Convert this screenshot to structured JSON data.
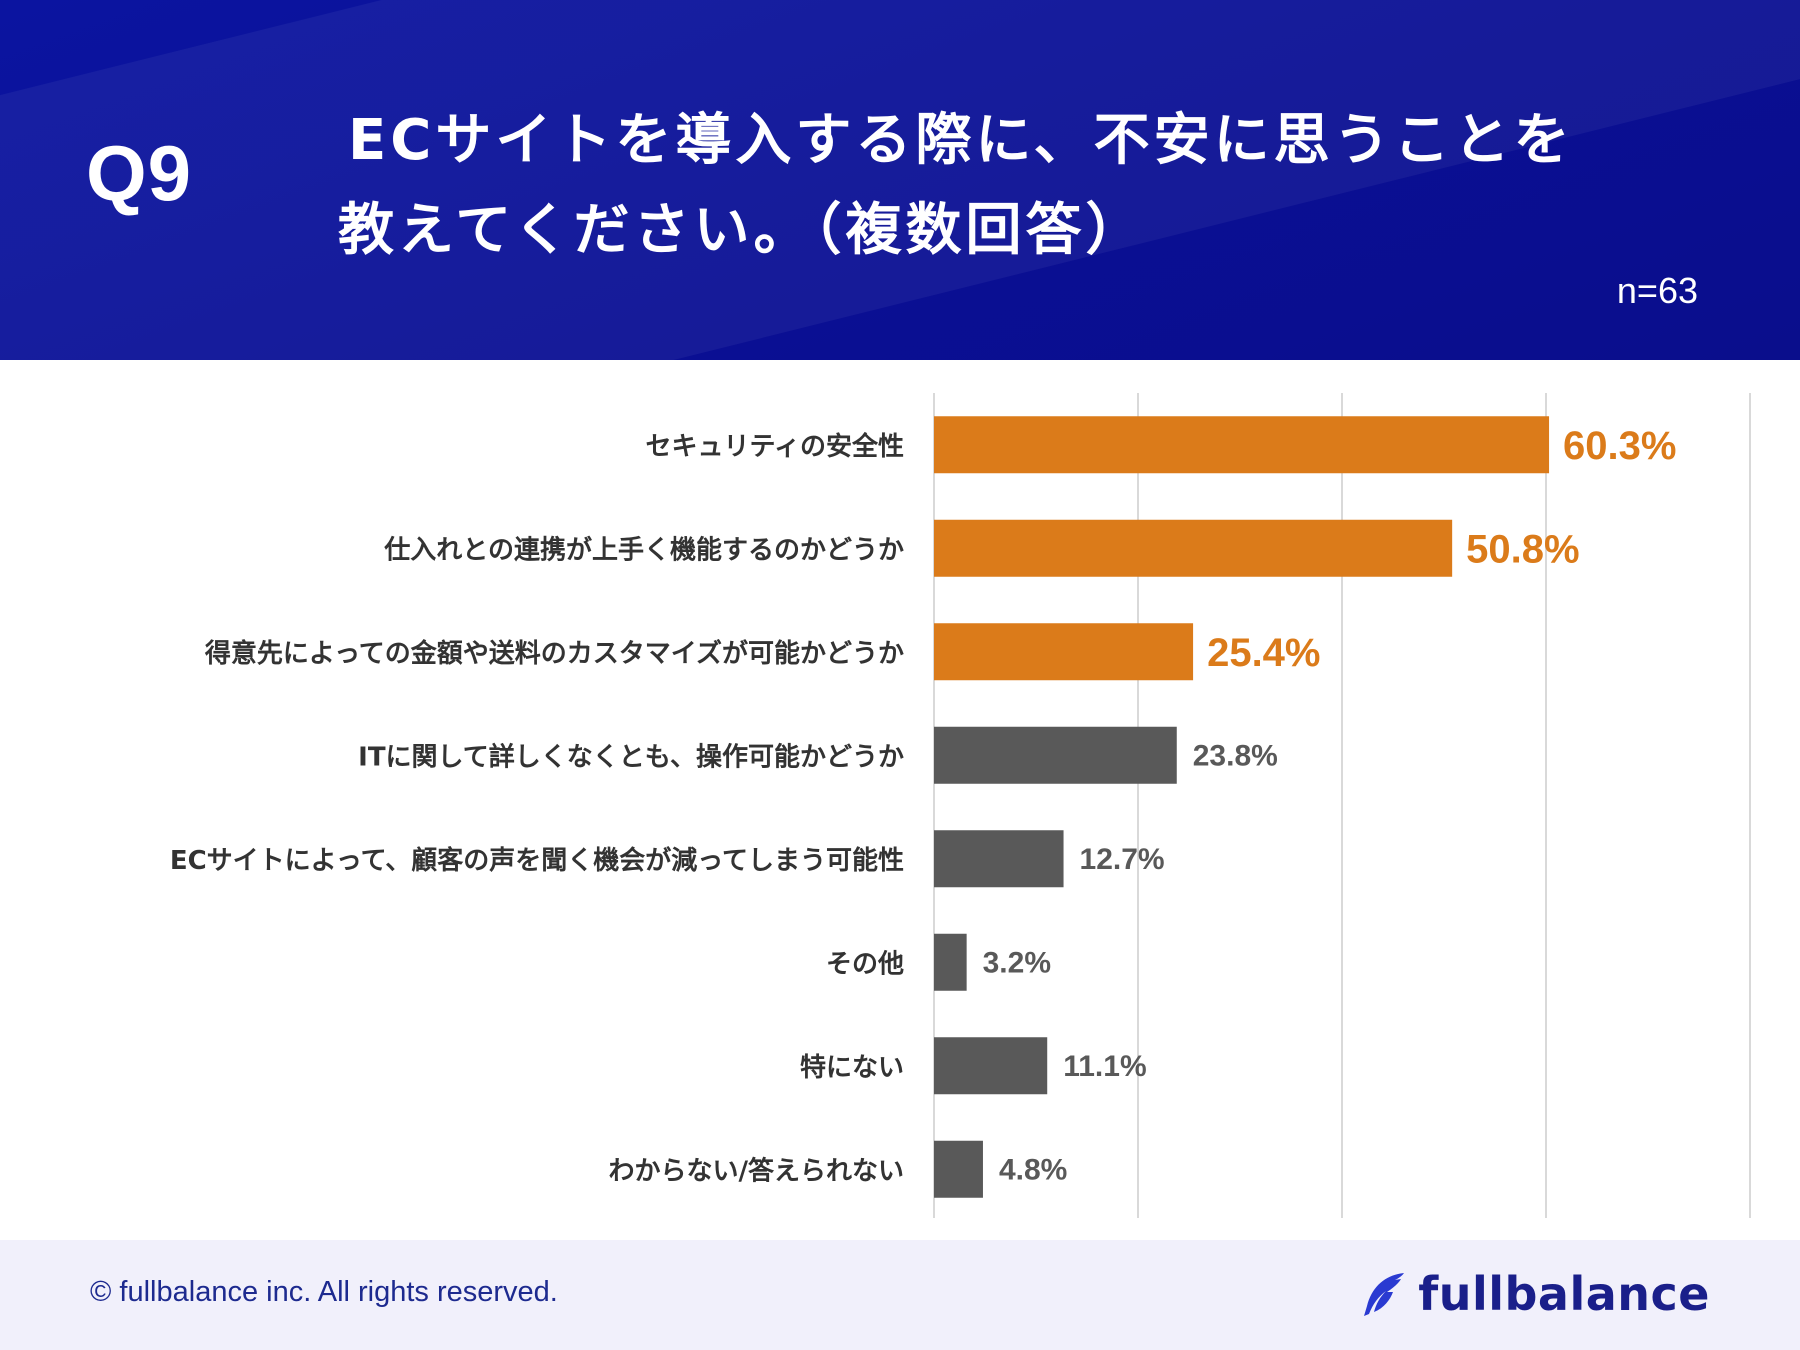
{
  "header": {
    "question_number": "Q9",
    "title_line1": "ECサイトを導入する際に、不安に思うことを",
    "title_line2": "教えてください。（複数回答）",
    "sample_size": "n=63"
  },
  "chart_data": {
    "type": "bar",
    "orientation": "horizontal",
    "categories": [
      "セキュリティの安全性",
      "仕入れとの連携が上手く機能するのかどうか",
      "得意先によっての金額や送料のカスタマイズが可能かどうか",
      "ITに関して詳しくなくとも、操作可能かどうか",
      "ECサイトによって、顧客の声を聞く機会が減ってしまう可能性",
      "その他",
      "特にない",
      "わからない/答えられない"
    ],
    "values": [
      60.3,
      50.8,
      25.4,
      23.8,
      12.7,
      3.2,
      11.1,
      4.8
    ],
    "value_labels": [
      "60.3%",
      "50.8%",
      "25.4%",
      "23.8%",
      "12.7%",
      "3.2%",
      "11.1%",
      "4.8%"
    ],
    "highlighted": [
      true,
      true,
      true,
      false,
      false,
      false,
      false,
      false
    ],
    "xlim": [
      0,
      80
    ],
    "gridlines": [
      0,
      20,
      40,
      60,
      80
    ],
    "colors": {
      "highlight": "#db7b1a",
      "normal": "#595959",
      "grid": "#d9d9d9"
    }
  },
  "footer": {
    "copyright": "© fullbalance inc. All rights reserved.",
    "brand": "fullbalance",
    "brand_color": "#1a1f8a"
  }
}
